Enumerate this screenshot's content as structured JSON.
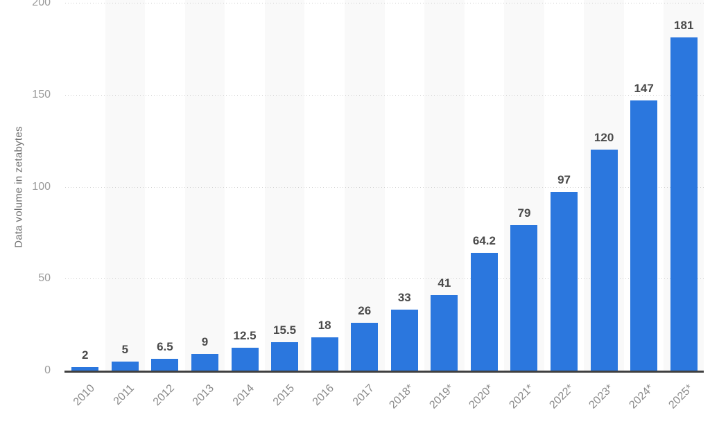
{
  "chart_data": {
    "type": "bar",
    "title": "",
    "ylabel": "Data volume in zetabytes",
    "xlabel": "",
    "categories": [
      "2010",
      "2011",
      "2012",
      "2013",
      "2014",
      "2015",
      "2016",
      "2017",
      "2018*",
      "2019*",
      "2020*",
      "2021*",
      "2022*",
      "2023*",
      "2024*",
      "2025*"
    ],
    "values": [
      2,
      5,
      6.5,
      9,
      12.5,
      15.5,
      18,
      26,
      33,
      41,
      64.2,
      79,
      97,
      120,
      147,
      181
    ],
    "value_labels": [
      "2",
      "5",
      "6.5",
      "9",
      "12.5",
      "15.5",
      "18",
      "26",
      "33",
      "41",
      "64.2",
      "79",
      "97",
      "120",
      "147",
      "181"
    ],
    "y_ticks": [
      0,
      50,
      100,
      150,
      200
    ],
    "y_tick_labels": [
      "0",
      "50",
      "100",
      "150",
      "200"
    ],
    "ylim": [
      0,
      200
    ],
    "grid": "horizontal-dotted",
    "legend": "none",
    "colors": {
      "bar": "#2b77de",
      "band": "#f9f9f9",
      "gridline": "#cccccc",
      "baseline": "#404040",
      "value_label": "#4a4a4a",
      "tick_label": "#9a9a9a",
      "axis_title": "#6e6e6e"
    }
  }
}
